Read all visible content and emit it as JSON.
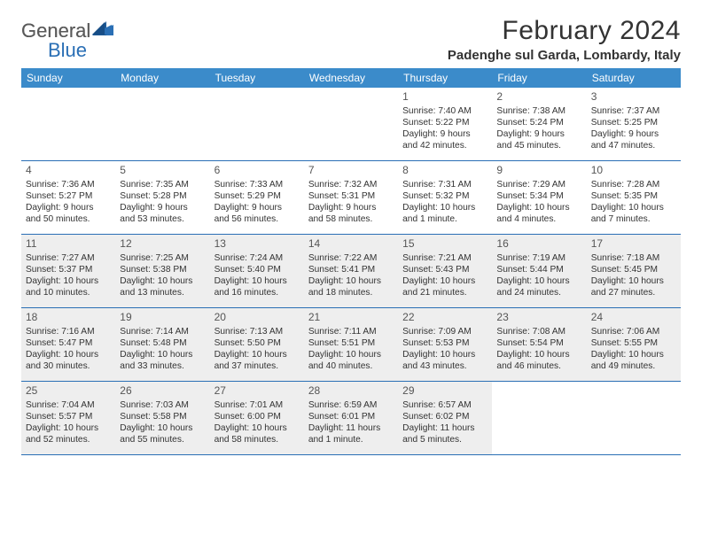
{
  "logo": {
    "text_general": "General",
    "text_blue": "Blue"
  },
  "title": "February 2024",
  "location": "Padenghe sul Garda, Lombardy, Italy",
  "weekdays": [
    "Sunday",
    "Monday",
    "Tuesday",
    "Wednesday",
    "Thursday",
    "Friday",
    "Saturday"
  ],
  "colors": {
    "header_bar": "#3b8bca",
    "rule": "#2a6fb5",
    "shade": "#eeeeee",
    "text": "#333333",
    "logo_gray": "#5a5a5a",
    "logo_blue": "#2a6fb5"
  },
  "weeks": [
    [
      {
        "blank": true
      },
      {
        "blank": true
      },
      {
        "blank": true
      },
      {
        "blank": true
      },
      {
        "num": "1",
        "sunrise": "Sunrise: 7:40 AM",
        "sunset": "Sunset: 5:22 PM",
        "day1": "Daylight: 9 hours",
        "day2": "and 42 minutes."
      },
      {
        "num": "2",
        "sunrise": "Sunrise: 7:38 AM",
        "sunset": "Sunset: 5:24 PM",
        "day1": "Daylight: 9 hours",
        "day2": "and 45 minutes."
      },
      {
        "num": "3",
        "sunrise": "Sunrise: 7:37 AM",
        "sunset": "Sunset: 5:25 PM",
        "day1": "Daylight: 9 hours",
        "day2": "and 47 minutes."
      }
    ],
    [
      {
        "num": "4",
        "sunrise": "Sunrise: 7:36 AM",
        "sunset": "Sunset: 5:27 PM",
        "day1": "Daylight: 9 hours",
        "day2": "and 50 minutes."
      },
      {
        "num": "5",
        "sunrise": "Sunrise: 7:35 AM",
        "sunset": "Sunset: 5:28 PM",
        "day1": "Daylight: 9 hours",
        "day2": "and 53 minutes."
      },
      {
        "num": "6",
        "sunrise": "Sunrise: 7:33 AM",
        "sunset": "Sunset: 5:29 PM",
        "day1": "Daylight: 9 hours",
        "day2": "and 56 minutes."
      },
      {
        "num": "7",
        "sunrise": "Sunrise: 7:32 AM",
        "sunset": "Sunset: 5:31 PM",
        "day1": "Daylight: 9 hours",
        "day2": "and 58 minutes."
      },
      {
        "num": "8",
        "sunrise": "Sunrise: 7:31 AM",
        "sunset": "Sunset: 5:32 PM",
        "day1": "Daylight: 10 hours",
        "day2": "and 1 minute."
      },
      {
        "num": "9",
        "sunrise": "Sunrise: 7:29 AM",
        "sunset": "Sunset: 5:34 PM",
        "day1": "Daylight: 10 hours",
        "day2": "and 4 minutes."
      },
      {
        "num": "10",
        "sunrise": "Sunrise: 7:28 AM",
        "sunset": "Sunset: 5:35 PM",
        "day1": "Daylight: 10 hours",
        "day2": "and 7 minutes."
      }
    ],
    [
      {
        "num": "11",
        "shade": true,
        "sunrise": "Sunrise: 7:27 AM",
        "sunset": "Sunset: 5:37 PM",
        "day1": "Daylight: 10 hours",
        "day2": "and 10 minutes."
      },
      {
        "num": "12",
        "shade": true,
        "sunrise": "Sunrise: 7:25 AM",
        "sunset": "Sunset: 5:38 PM",
        "day1": "Daylight: 10 hours",
        "day2": "and 13 minutes."
      },
      {
        "num": "13",
        "shade": true,
        "sunrise": "Sunrise: 7:24 AM",
        "sunset": "Sunset: 5:40 PM",
        "day1": "Daylight: 10 hours",
        "day2": "and 16 minutes."
      },
      {
        "num": "14",
        "shade": true,
        "sunrise": "Sunrise: 7:22 AM",
        "sunset": "Sunset: 5:41 PM",
        "day1": "Daylight: 10 hours",
        "day2": "and 18 minutes."
      },
      {
        "num": "15",
        "shade": true,
        "sunrise": "Sunrise: 7:21 AM",
        "sunset": "Sunset: 5:43 PM",
        "day1": "Daylight: 10 hours",
        "day2": "and 21 minutes."
      },
      {
        "num": "16",
        "shade": true,
        "sunrise": "Sunrise: 7:19 AM",
        "sunset": "Sunset: 5:44 PM",
        "day1": "Daylight: 10 hours",
        "day2": "and 24 minutes."
      },
      {
        "num": "17",
        "shade": true,
        "sunrise": "Sunrise: 7:18 AM",
        "sunset": "Sunset: 5:45 PM",
        "day1": "Daylight: 10 hours",
        "day2": "and 27 minutes."
      }
    ],
    [
      {
        "num": "18",
        "shade": true,
        "sunrise": "Sunrise: 7:16 AM",
        "sunset": "Sunset: 5:47 PM",
        "day1": "Daylight: 10 hours",
        "day2": "and 30 minutes."
      },
      {
        "num": "19",
        "shade": true,
        "sunrise": "Sunrise: 7:14 AM",
        "sunset": "Sunset: 5:48 PM",
        "day1": "Daylight: 10 hours",
        "day2": "and 33 minutes."
      },
      {
        "num": "20",
        "shade": true,
        "sunrise": "Sunrise: 7:13 AM",
        "sunset": "Sunset: 5:50 PM",
        "day1": "Daylight: 10 hours",
        "day2": "and 37 minutes."
      },
      {
        "num": "21",
        "shade": true,
        "sunrise": "Sunrise: 7:11 AM",
        "sunset": "Sunset: 5:51 PM",
        "day1": "Daylight: 10 hours",
        "day2": "and 40 minutes."
      },
      {
        "num": "22",
        "shade": true,
        "sunrise": "Sunrise: 7:09 AM",
        "sunset": "Sunset: 5:53 PM",
        "day1": "Daylight: 10 hours",
        "day2": "and 43 minutes."
      },
      {
        "num": "23",
        "shade": true,
        "sunrise": "Sunrise: 7:08 AM",
        "sunset": "Sunset: 5:54 PM",
        "day1": "Daylight: 10 hours",
        "day2": "and 46 minutes."
      },
      {
        "num": "24",
        "shade": true,
        "sunrise": "Sunrise: 7:06 AM",
        "sunset": "Sunset: 5:55 PM",
        "day1": "Daylight: 10 hours",
        "day2": "and 49 minutes."
      }
    ],
    [
      {
        "num": "25",
        "shade": true,
        "sunrise": "Sunrise: 7:04 AM",
        "sunset": "Sunset: 5:57 PM",
        "day1": "Daylight: 10 hours",
        "day2": "and 52 minutes."
      },
      {
        "num": "26",
        "shade": true,
        "sunrise": "Sunrise: 7:03 AM",
        "sunset": "Sunset: 5:58 PM",
        "day1": "Daylight: 10 hours",
        "day2": "and 55 minutes."
      },
      {
        "num": "27",
        "shade": true,
        "sunrise": "Sunrise: 7:01 AM",
        "sunset": "Sunset: 6:00 PM",
        "day1": "Daylight: 10 hours",
        "day2": "and 58 minutes."
      },
      {
        "num": "28",
        "shade": true,
        "sunrise": "Sunrise: 6:59 AM",
        "sunset": "Sunset: 6:01 PM",
        "day1": "Daylight: 11 hours",
        "day2": "and 1 minute."
      },
      {
        "num": "29",
        "shade": true,
        "sunrise": "Sunrise: 6:57 AM",
        "sunset": "Sunset: 6:02 PM",
        "day1": "Daylight: 11 hours",
        "day2": "and 5 minutes."
      },
      {
        "blank": true
      },
      {
        "blank": true
      }
    ]
  ]
}
